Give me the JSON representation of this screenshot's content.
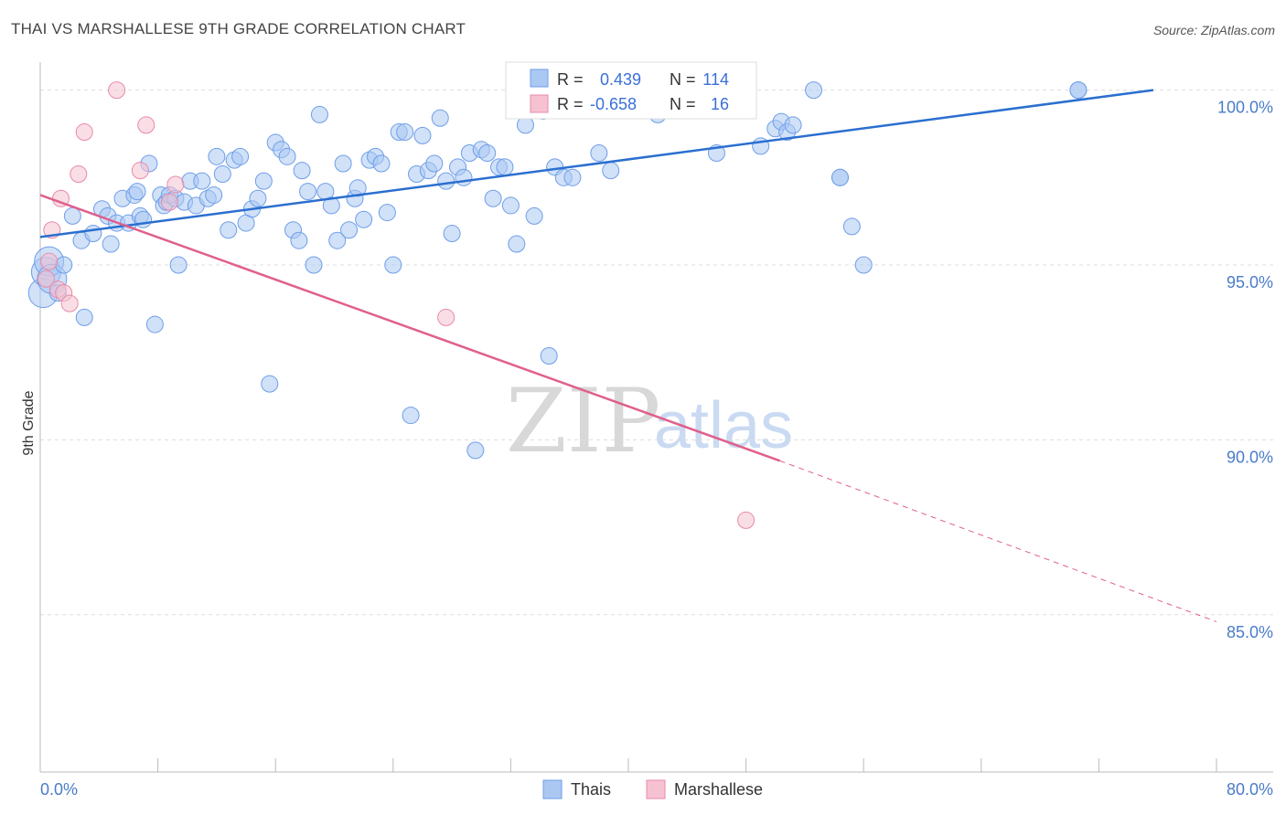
{
  "title": "THAI VS MARSHALLESE 9TH GRADE CORRELATION CHART",
  "source": "Source: ZipAtlas.com",
  "watermark": {
    "zip": "ZIP",
    "atlas": "atlas"
  },
  "colors": {
    "thais": "#6f9ee8",
    "thais_fill": "#aac8f2",
    "thais_line": "#2a6fd0",
    "marshallese": "#e88aa8",
    "marshallese_fill": "#f6c2d2",
    "marshallese_line": "#e0608c",
    "grid": "#dddddd",
    "axis_text": "#4a7cc9"
  },
  "chart_data": {
    "type": "scatter",
    "title": "THAI VS MARSHALLESE 9TH GRADE CORRELATION CHART",
    "xlabel": "",
    "ylabel": "9th Grade",
    "xlim": [
      0,
      80
    ],
    "ylim": [
      80.5,
      100.8
    ],
    "x_tick_labels": [
      "0.0%",
      "80.0%"
    ],
    "y_ticks": [
      85,
      90,
      95,
      100
    ],
    "y_tick_labels": [
      "85.0%",
      "90.0%",
      "95.0%",
      "100.0%"
    ],
    "grid": true,
    "legend_position": "bottom-center",
    "stats": [
      {
        "r_label": "R =",
        "r": "0.439",
        "n_label": "N =",
        "n": "114"
      },
      {
        "r_label": "R =",
        "r": "-0.658",
        "n_label": "N =",
        "n": "16"
      }
    ],
    "series": [
      {
        "name": "Thais",
        "trend": {
          "x": [
            0,
            75.7
          ],
          "y": [
            95.8,
            100.0
          ]
        },
        "points": [
          [
            0.2,
            94.2
          ],
          [
            0.4,
            94.8
          ],
          [
            0.6,
            95.1
          ],
          [
            0.8,
            94.6
          ],
          [
            1.2,
            94.2
          ],
          [
            1.6,
            95.0
          ],
          [
            2.2,
            96.4
          ],
          [
            2.8,
            95.7
          ],
          [
            3.0,
            93.5
          ],
          [
            3.6,
            95.9
          ],
          [
            4.2,
            96.6
          ],
          [
            4.6,
            96.4
          ],
          [
            4.8,
            95.6
          ],
          [
            5.2,
            96.2
          ],
          [
            5.6,
            96.9
          ],
          [
            6.0,
            96.2
          ],
          [
            6.4,
            97.0
          ],
          [
            6.6,
            97.1
          ],
          [
            6.8,
            96.4
          ],
          [
            7.0,
            96.3
          ],
          [
            7.4,
            97.9
          ],
          [
            7.8,
            93.3
          ],
          [
            8.2,
            97.0
          ],
          [
            8.4,
            96.7
          ],
          [
            8.6,
            96.8
          ],
          [
            8.8,
            97.0
          ],
          [
            9.2,
            96.9
          ],
          [
            9.4,
            95.0
          ],
          [
            9.8,
            96.8
          ],
          [
            10.2,
            97.4
          ],
          [
            10.6,
            96.7
          ],
          [
            11.0,
            97.4
          ],
          [
            11.4,
            96.9
          ],
          [
            11.8,
            97.0
          ],
          [
            12.0,
            98.1
          ],
          [
            12.4,
            97.6
          ],
          [
            12.8,
            96.0
          ],
          [
            13.2,
            98.0
          ],
          [
            13.6,
            98.1
          ],
          [
            14.0,
            96.2
          ],
          [
            14.4,
            96.6
          ],
          [
            14.8,
            96.9
          ],
          [
            15.2,
            97.4
          ],
          [
            15.6,
            91.6
          ],
          [
            16.0,
            98.5
          ],
          [
            16.4,
            98.3
          ],
          [
            16.8,
            98.1
          ],
          [
            17.2,
            96.0
          ],
          [
            17.6,
            95.7
          ],
          [
            17.8,
            97.7
          ],
          [
            18.2,
            97.1
          ],
          [
            18.6,
            95.0
          ],
          [
            19.0,
            99.3
          ],
          [
            19.4,
            97.1
          ],
          [
            19.8,
            96.7
          ],
          [
            20.2,
            95.7
          ],
          [
            20.6,
            97.9
          ],
          [
            21.0,
            96.0
          ],
          [
            21.4,
            96.9
          ],
          [
            21.6,
            97.2
          ],
          [
            22.0,
            96.3
          ],
          [
            22.4,
            98.0
          ],
          [
            22.8,
            98.1
          ],
          [
            23.2,
            97.9
          ],
          [
            23.6,
            96.5
          ],
          [
            24.0,
            95.0
          ],
          [
            24.4,
            98.8
          ],
          [
            24.8,
            98.8
          ],
          [
            25.2,
            90.7
          ],
          [
            25.6,
            97.6
          ],
          [
            26.0,
            98.7
          ],
          [
            26.4,
            97.7
          ],
          [
            26.8,
            97.9
          ],
          [
            27.2,
            99.2
          ],
          [
            27.6,
            97.4
          ],
          [
            28.0,
            95.9
          ],
          [
            28.4,
            97.8
          ],
          [
            28.8,
            97.5
          ],
          [
            29.2,
            98.2
          ],
          [
            29.6,
            89.7
          ],
          [
            30.0,
            98.3
          ],
          [
            30.4,
            98.2
          ],
          [
            30.8,
            96.9
          ],
          [
            31.2,
            97.8
          ],
          [
            31.6,
            97.8
          ],
          [
            32.0,
            96.7
          ],
          [
            32.4,
            95.6
          ],
          [
            33.0,
            99.0
          ],
          [
            33.6,
            96.4
          ],
          [
            34.2,
            99.4
          ],
          [
            34.6,
            92.4
          ],
          [
            35.0,
            97.8
          ],
          [
            35.6,
            97.5
          ],
          [
            36.2,
            97.5
          ],
          [
            37.2,
            99.5
          ],
          [
            38.0,
            98.2
          ],
          [
            38.8,
            97.7
          ],
          [
            39.4,
            99.8
          ],
          [
            40.2,
            100.0
          ],
          [
            41.4,
            100.0
          ],
          [
            42.0,
            99.3
          ],
          [
            46.0,
            98.2
          ],
          [
            49.0,
            98.4
          ],
          [
            50.0,
            98.9
          ],
          [
            50.4,
            99.1
          ],
          [
            50.8,
            98.8
          ],
          [
            51.2,
            99.0
          ],
          [
            52.6,
            100.0
          ],
          [
            54.4,
            97.5
          ],
          [
            54.4,
            97.5
          ],
          [
            55.2,
            96.1
          ],
          [
            56.0,
            95.0
          ],
          [
            70.6,
            100.0
          ],
          [
            70.6,
            100.0
          ]
        ]
      },
      {
        "name": "Marshallese",
        "trend": {
          "x": [
            0,
            50.3
          ],
          "y": [
            97.0,
            89.4
          ]
        },
        "trend_extension": {
          "x": [
            50.3,
            80
          ],
          "y": [
            89.4,
            84.8
          ]
        },
        "points": [
          [
            0.4,
            94.6
          ],
          [
            0.6,
            95.1
          ],
          [
            0.8,
            96.0
          ],
          [
            1.2,
            94.3
          ],
          [
            1.4,
            96.9
          ],
          [
            1.6,
            94.2
          ],
          [
            2.0,
            93.9
          ],
          [
            2.6,
            97.6
          ],
          [
            3.0,
            98.8
          ],
          [
            5.2,
            100.0
          ],
          [
            6.8,
            97.7
          ],
          [
            7.2,
            99.0
          ],
          [
            8.8,
            96.8
          ],
          [
            9.2,
            97.3
          ],
          [
            27.6,
            93.5
          ],
          [
            48.0,
            87.7
          ]
        ]
      }
    ]
  }
}
